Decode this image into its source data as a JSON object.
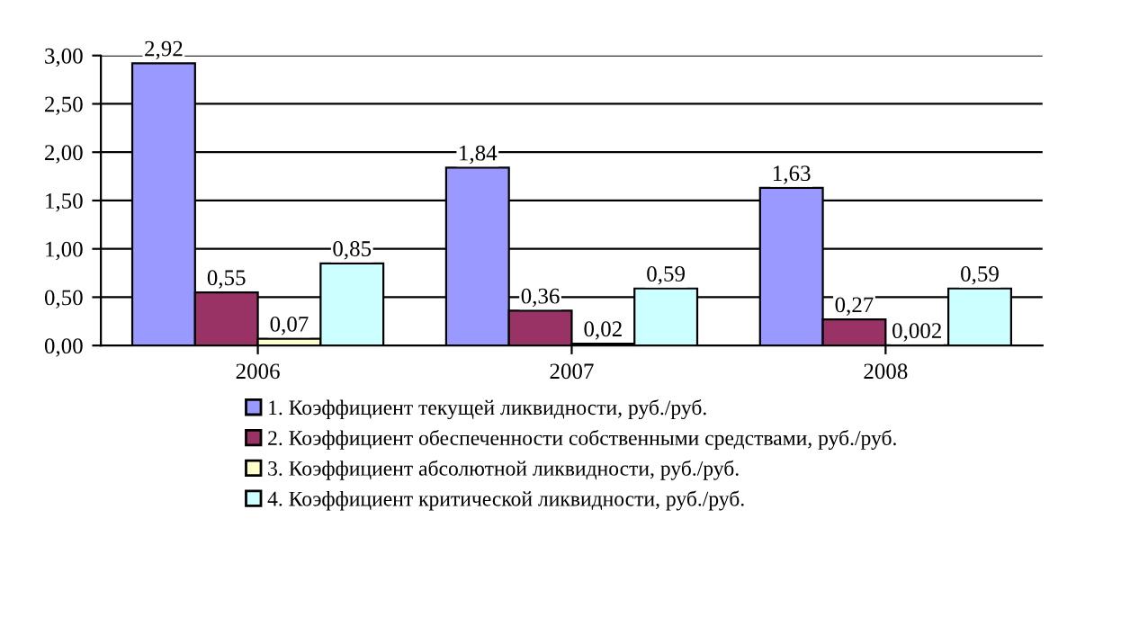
{
  "chart_data": {
    "type": "bar",
    "categories": [
      "2006",
      "2007",
      "2008"
    ],
    "series": [
      {
        "name": "1. Коэффициент текущей ликвидности, руб./руб.",
        "color": "#9999ff",
        "values": [
          2.92,
          1.84,
          1.63
        ],
        "value_labels": [
          "2,92",
          "1,84",
          "1,63"
        ]
      },
      {
        "name": "2. Коэффициент обеспеченности собственными средствами, руб./руб.",
        "color": "#993366",
        "values": [
          0.55,
          0.36,
          0.27
        ],
        "value_labels": [
          "0,55",
          "0,36",
          "0,27"
        ]
      },
      {
        "name": "3. Коэффициент абсолютной ликвидности, руб./руб.",
        "color": "#ffffcc",
        "values": [
          0.07,
          0.02,
          0.002
        ],
        "value_labels": [
          "0,07",
          "0,02",
          "0,002"
        ]
      },
      {
        "name": "4. Коэффициент критической ликвидности, руб./руб.",
        "color": "#ccffff",
        "values": [
          0.85,
          0.59,
          0.59
        ],
        "value_labels": [
          "0,85",
          "0,59",
          "0,59"
        ]
      }
    ],
    "ylim": [
      0,
      3
    ],
    "yticks": [
      {
        "value": 0,
        "label": "0,00"
      },
      {
        "value": 0.5,
        "label": "0,50"
      },
      {
        "value": 1,
        "label": "1,00"
      },
      {
        "value": 1.5,
        "label": "1,50"
      },
      {
        "value": 2,
        "label": "2,00"
      },
      {
        "value": 2.5,
        "label": "2,50"
      },
      {
        "value": 3,
        "label": "3,00"
      }
    ],
    "grid": "y",
    "legend": "bottom"
  }
}
